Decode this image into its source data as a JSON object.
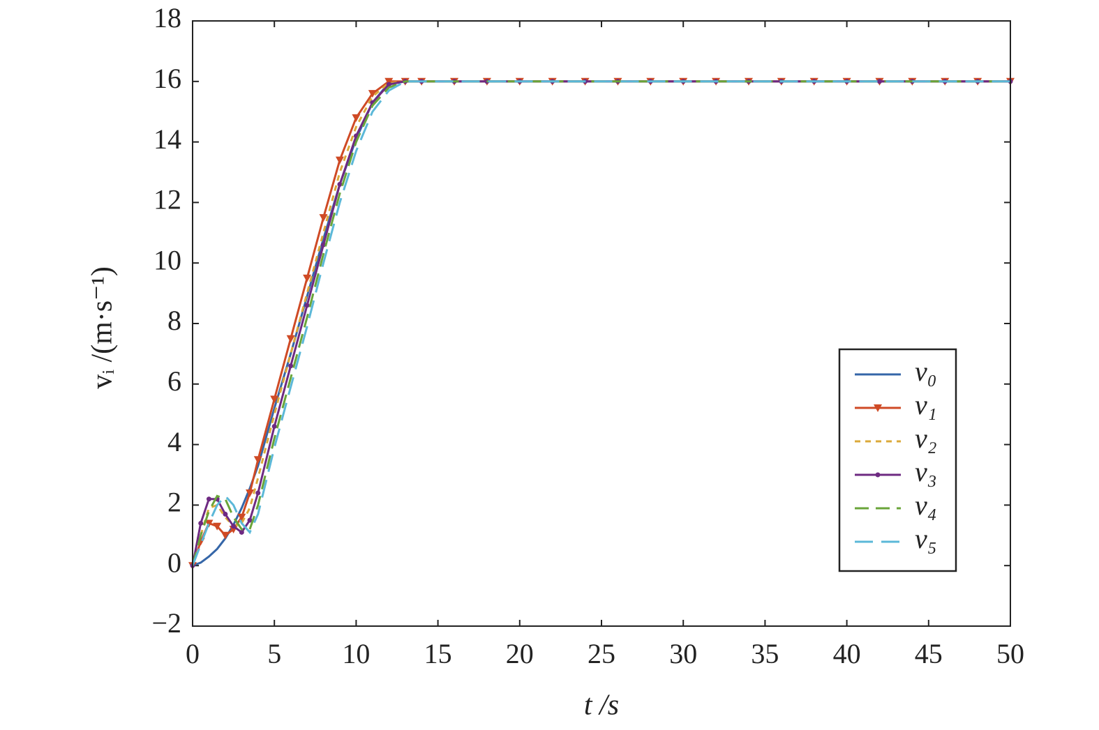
{
  "chart_data": {
    "type": "line",
    "xlabel": "t /s",
    "ylabel": "vᵢ /(m·s⁻¹)",
    "x": [
      0,
      0.5,
      1,
      1.5,
      2,
      2.5,
      3,
      3.5,
      4,
      5,
      6,
      7,
      8,
      9,
      10,
      11,
      12,
      13,
      14,
      16,
      18,
      20,
      22,
      24,
      26,
      28,
      30,
      32,
      34,
      36,
      38,
      40,
      42,
      44,
      46,
      48,
      50
    ],
    "series": [
      {
        "name": "v₀",
        "color": "#3566a8",
        "dash": "solid",
        "marker": "none",
        "values": [
          0,
          0.1,
          0.3,
          0.55,
          0.9,
          1.35,
          1.9,
          2.55,
          3.3,
          5.2,
          7.0,
          8.9,
          10.8,
          12.6,
          14.1,
          15.3,
          15.95,
          16,
          16,
          16,
          16,
          16,
          16,
          16,
          16,
          16,
          16,
          16,
          16,
          16,
          16,
          16,
          16,
          16,
          16,
          16,
          16
        ]
      },
      {
        "name": "v₁",
        "color": "#cf4a25",
        "dash": "solid",
        "marker": "triangle",
        "values": [
          0,
          0.8,
          1.4,
          1.3,
          1.0,
          1.2,
          1.6,
          2.4,
          3.5,
          5.5,
          7.5,
          9.5,
          11.5,
          13.4,
          14.8,
          15.6,
          16,
          16,
          16,
          16,
          16,
          16,
          16,
          16,
          16,
          16,
          16,
          16,
          16,
          16,
          16,
          16,
          16,
          16,
          16,
          16,
          16
        ]
      },
      {
        "name": "v₂",
        "color": "#dba93a",
        "dash": "dotted",
        "marker": "none",
        "values": [
          0,
          1.0,
          1.9,
          2.0,
          1.6,
          1.3,
          1.4,
          1.9,
          2.9,
          5.0,
          7.0,
          9.0,
          11.0,
          13.0,
          14.5,
          15.5,
          15.95,
          16,
          16,
          16,
          16,
          16,
          16,
          16,
          16,
          16,
          16,
          16,
          16,
          16,
          16,
          16,
          16,
          16,
          16,
          16,
          16
        ]
      },
      {
        "name": "v₃",
        "color": "#6e2a82",
        "dash": "solid",
        "marker": "dot",
        "values": [
          0,
          1.4,
          2.2,
          2.2,
          1.7,
          1.3,
          1.1,
          1.5,
          2.4,
          4.6,
          6.6,
          8.6,
          10.6,
          12.6,
          14.2,
          15.3,
          15.9,
          16,
          16,
          16,
          16,
          16,
          16,
          16,
          16,
          16,
          16,
          16,
          16,
          16,
          16,
          16,
          16,
          16,
          16,
          16,
          16
        ]
      },
      {
        "name": "v₄",
        "color": "#6aa53a",
        "dash": "dashed",
        "marker": "none",
        "values": [
          0,
          1.0,
          1.8,
          2.3,
          2.2,
          1.6,
          1.2,
          1.2,
          2.0,
          4.2,
          6.2,
          8.2,
          10.3,
          12.3,
          14.0,
          15.2,
          15.8,
          16,
          16,
          16,
          16,
          16,
          16,
          16,
          16,
          16,
          16,
          16,
          16,
          16,
          16,
          16,
          16,
          16,
          16,
          16,
          16
        ]
      },
      {
        "name": "v₅",
        "color": "#5bb8d8",
        "dash": "longdash",
        "marker": "none",
        "values": [
          0,
          0.7,
          1.4,
          2.0,
          2.3,
          2.0,
          1.4,
          1.1,
          1.7,
          3.9,
          5.9,
          7.9,
          10.0,
          12.0,
          13.7,
          15.0,
          15.7,
          16,
          16,
          16,
          16,
          16,
          16,
          16,
          16,
          16,
          16,
          16,
          16,
          16,
          16,
          16,
          16,
          16,
          16,
          16,
          16
        ]
      }
    ],
    "xlim": [
      0,
      50
    ],
    "xticks": [
      0,
      5,
      10,
      15,
      20,
      25,
      30,
      35,
      40,
      45,
      50
    ],
    "ylim": [
      -2,
      18
    ],
    "yticks": [
      {
        "value": -2,
        "label": "−2"
      },
      0,
      2,
      4,
      6,
      8,
      10,
      12,
      14,
      16,
      18
    ],
    "grid": false,
    "legend": "lower right"
  }
}
